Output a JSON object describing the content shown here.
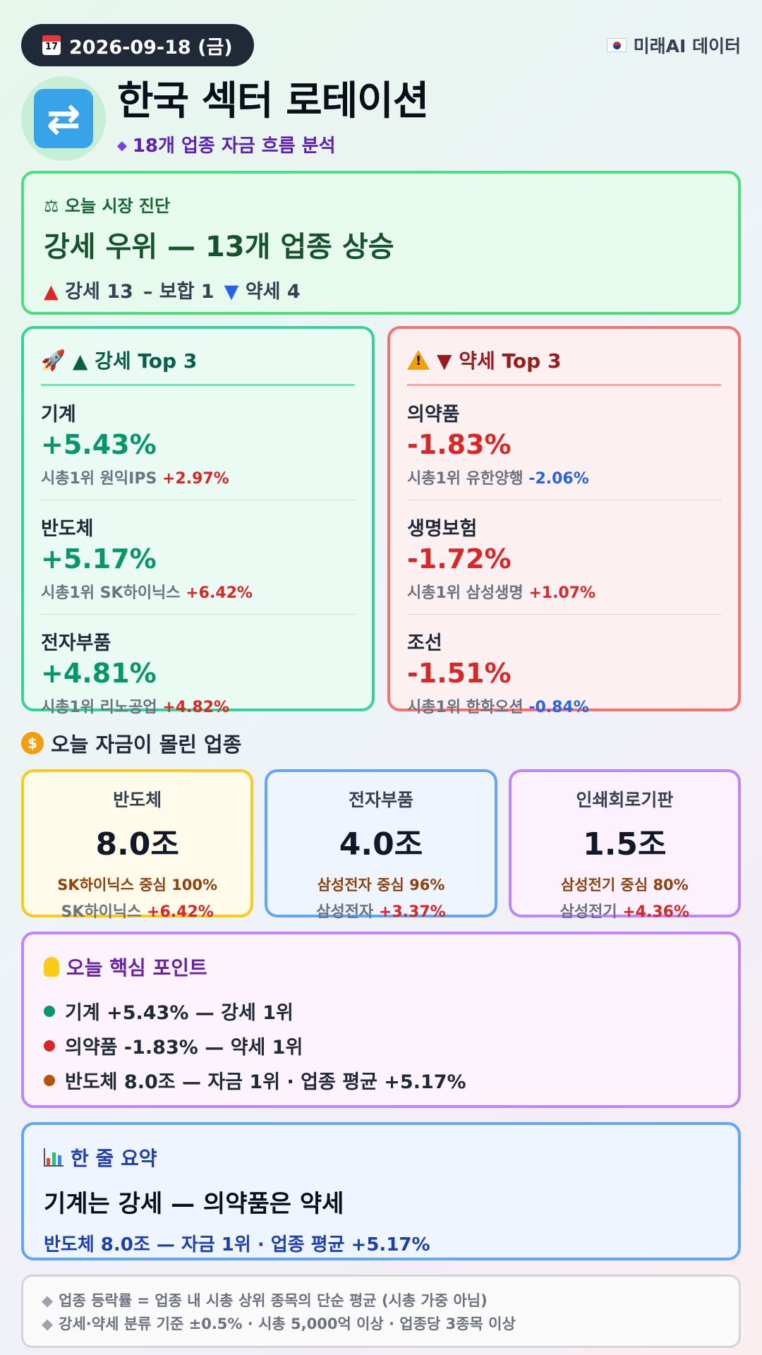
{
  "header": {
    "date": "2026-09-18 (금)",
    "source": "미래AI 데이터",
    "title": "한국 섹터 로테이션",
    "subtitle": "18개 업종 자금 흐름 분석"
  },
  "diagnosis": {
    "label": "오늘 시장 진단",
    "headline": "강세 우위 — 13개 업종 상승",
    "strong": "▲ 강세 13",
    "flat": "– 보합 1",
    "weak": "▼ 약세 4"
  },
  "top_strong": {
    "title": "▲ 강세 Top 3",
    "items": [
      {
        "name": "기계",
        "pct": "+5.43%",
        "leader_label": "시총1위 원익IPS",
        "leader_pct": "+2.97%"
      },
      {
        "name": "반도체",
        "pct": "+5.17%",
        "leader_label": "시총1위 SK하이닉스",
        "leader_pct": "+6.42%"
      },
      {
        "name": "전자부품",
        "pct": "+4.81%",
        "leader_label": "시총1위 리노공업",
        "leader_pct": "+4.82%"
      }
    ]
  },
  "top_weak": {
    "title": "▼ 약세 Top 3",
    "items": [
      {
        "name": "의약품",
        "pct": "-1.83%",
        "leader_label": "시총1위 유한양행",
        "leader_pct": "-2.06%"
      },
      {
        "name": "생명보험",
        "pct": "-1.72%",
        "leader_label": "시총1위 삼성생명",
        "leader_pct": "+1.07%"
      },
      {
        "name": "조선",
        "pct": "-1.51%",
        "leader_label": "시총1위 한화오션",
        "leader_pct": "-0.84%"
      }
    ]
  },
  "money": {
    "title": "오늘 자금이 몰린 업종",
    "cards": [
      {
        "name": "반도체",
        "amount": "8.0조",
        "focus": "SK하이닉스 중심 100%",
        "leader": "SK하이닉스",
        "leader_pct": "+6.42%"
      },
      {
        "name": "전자부품",
        "amount": "4.0조",
        "focus": "삼성전자 중심 96%",
        "leader": "삼성전자",
        "leader_pct": "+3.37%"
      },
      {
        "name": "인쇄회로기판",
        "amount": "1.5조",
        "focus": "삼성전기 중심 80%",
        "leader": "삼성전기",
        "leader_pct": "+4.36%"
      }
    ]
  },
  "key_points": {
    "title": "오늘 핵심 포인트",
    "items": [
      {
        "text": "기계 +5.43% — 강세 1위",
        "color": "#059669"
      },
      {
        "text": "의약품 -1.83% — 약세 1위",
        "color": "#dc2626"
      },
      {
        "text": "반도체 8.0조 — 자금 1위 · 업종 평균 +5.17%",
        "color": "#b45309"
      }
    ]
  },
  "summary": {
    "title": "한 줄 요약",
    "headline": "기계는 강세 — 의약품은 약세",
    "sub": "반도체 8.0조 — 자금 1위 · 업종 평균 +5.17%"
  },
  "footnotes": [
    "업종 등락률 = 업종 내 시총 상위 종목의 단순 평균 (시총 가중 아님)",
    "강세·약세 분류 기준 ±0.5% · 시총 5,000억 이상 · 업종당 3종목 이상"
  ],
  "colors": {
    "up": "#dc2626",
    "down": "#2563eb",
    "strong_accent": "#059669",
    "weak_accent": "#dc2626"
  }
}
